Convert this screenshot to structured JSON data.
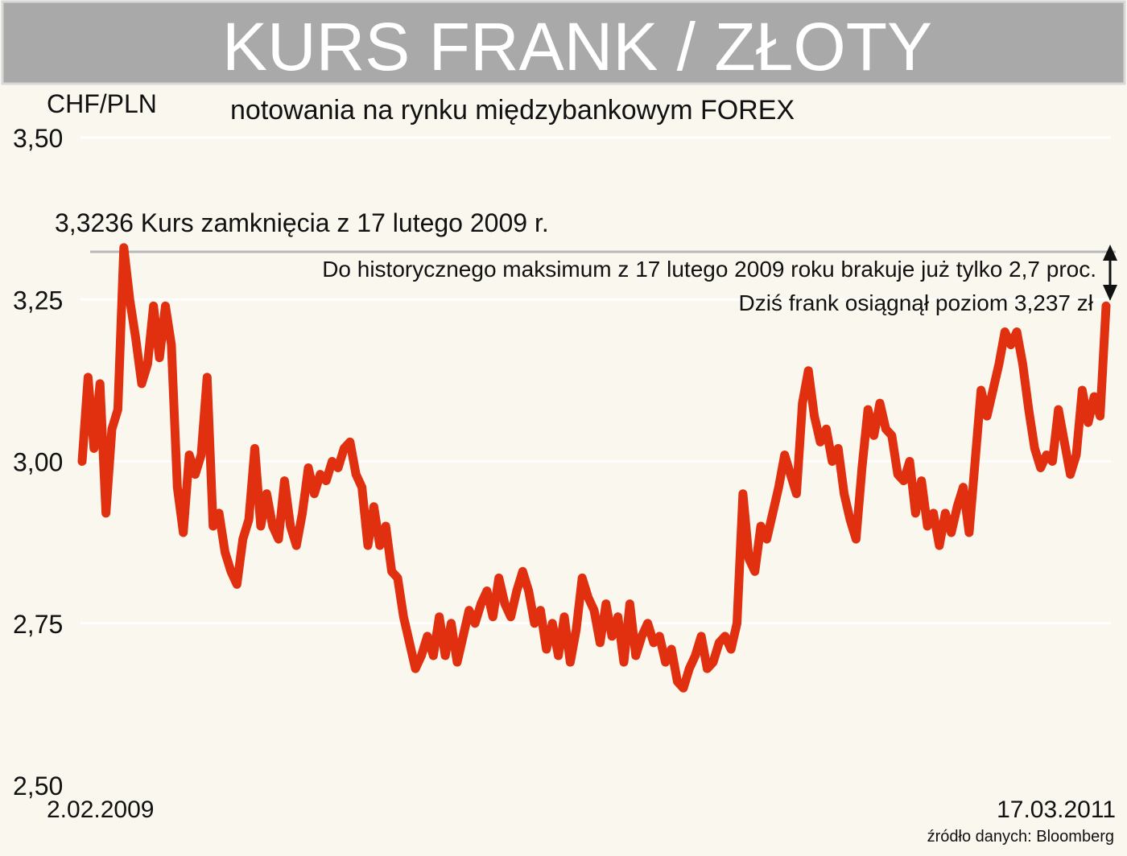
{
  "chart_data": {
    "type": "line",
    "title": "KURS FRANK / ZŁOTY",
    "subtitle": "notowania na rynku międzybankowym FOREX",
    "ylabel": "CHF/PLN",
    "ylim": [
      2.5,
      3.5
    ],
    "yticks": [
      {
        "value": 3.5,
        "label": "3,50"
      },
      {
        "value": 3.25,
        "label": "3,25"
      },
      {
        "value": 3.0,
        "label": "3,00"
      },
      {
        "value": 2.75,
        "label": "2,75"
      },
      {
        "value": 2.5,
        "label": "2,50"
      }
    ],
    "x_start_label": "2.02.2009",
    "x_end_label": "17.03.2011",
    "line_color": "#e03010",
    "reference_value": 3.3236,
    "reference_label": "3,3236 Kurs zamknięcia z 17 lutego 2009 r.",
    "annotation_gap": "Do historycznego maksimum z 17 lutego 2009 roku brakuje już tylko 2,7 proc.",
    "annotation_today": "Dziś frank osiągnął poziom 3,237 zł",
    "source": "źródło danych: Bloomberg",
    "series": [
      {
        "values": [
          3.0,
          3.13,
          3.02,
          3.12,
          2.92,
          3.05,
          3.08,
          3.33,
          3.25,
          3.19,
          3.12,
          3.15,
          3.24,
          3.16,
          3.24,
          3.18,
          2.96,
          2.89,
          3.01,
          2.98,
          3.01,
          3.13,
          2.9,
          2.92,
          2.86,
          2.83,
          2.81,
          2.88,
          2.91,
          3.02,
          2.9,
          2.95,
          2.9,
          2.88,
          2.97,
          2.9,
          2.87,
          2.92,
          2.99,
          2.95,
          2.98,
          2.97,
          3.0,
          2.99,
          3.02,
          3.03,
          2.98,
          2.96,
          2.87,
          2.93,
          2.87,
          2.9,
          2.83,
          2.82,
          2.76,
          2.72,
          2.68,
          2.7,
          2.73,
          2.7,
          2.76,
          2.7,
          2.75,
          2.69,
          2.73,
          2.77,
          2.75,
          2.78,
          2.8,
          2.76,
          2.82,
          2.78,
          2.76,
          2.8,
          2.83,
          2.8,
          2.75,
          2.77,
          2.71,
          2.75,
          2.7,
          2.76,
          2.69,
          2.74,
          2.82,
          2.79,
          2.77,
          2.72,
          2.78,
          2.73,
          2.76,
          2.69,
          2.78,
          2.7,
          2.73,
          2.75,
          2.72,
          2.73,
          2.69,
          2.71,
          2.66,
          2.65,
          2.68,
          2.7,
          2.73,
          2.68,
          2.69,
          2.72,
          2.73,
          2.71,
          2.75,
          2.95,
          2.85,
          2.83,
          2.9,
          2.88,
          2.92,
          2.96,
          3.01,
          2.98,
          2.95,
          3.09,
          3.14,
          3.07,
          3.03,
          3.05,
          3.0,
          3.02,
          2.95,
          2.91,
          2.88,
          2.99,
          3.08,
          3.04,
          3.09,
          3.05,
          3.04,
          2.98,
          2.97,
          3.0,
          2.92,
          2.97,
          2.9,
          2.92,
          2.87,
          2.92,
          2.89,
          2.93,
          2.96,
          2.89,
          3.0,
          3.11,
          3.07,
          3.11,
          3.15,
          3.2,
          3.18,
          3.2,
          3.15,
          3.08,
          3.02,
          2.99,
          3.01,
          3.0,
          3.08,
          3.03,
          2.98,
          3.01,
          3.11,
          3.06,
          3.1,
          3.07,
          3.24
        ]
      }
    ]
  }
}
